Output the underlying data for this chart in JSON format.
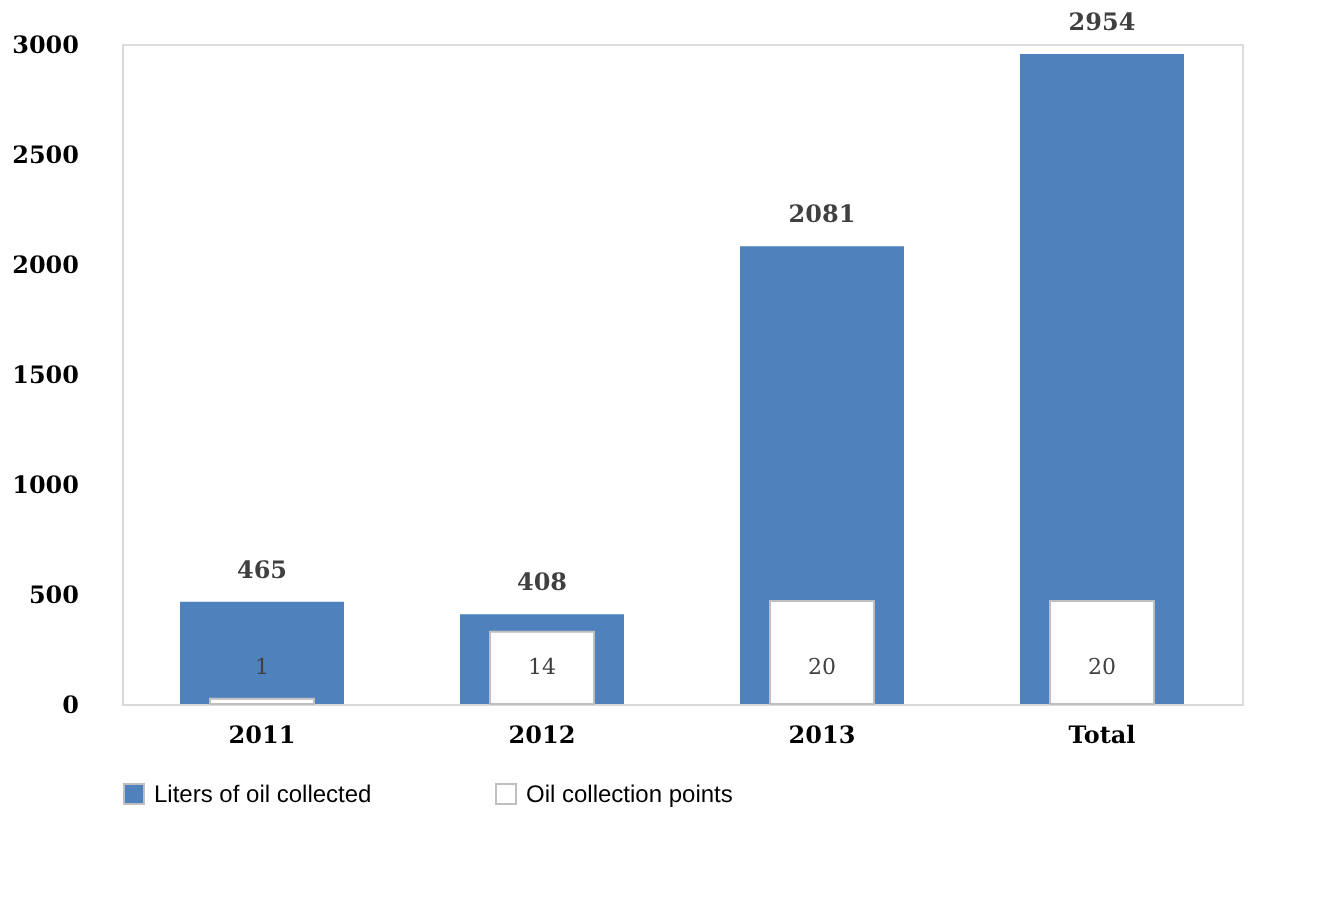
{
  "chart_data": {
    "type": "bar",
    "categories": [
      "2011",
      "2012",
      "2013",
      "Total"
    ],
    "series": [
      {
        "name": "Liters of oil collected",
        "color": "#4f81bd",
        "values": [
          465,
          408,
          2081,
          2954
        ]
      },
      {
        "name": "Oil collection points",
        "color": "#ffffff",
        "values": [
          1,
          14,
          20,
          20
        ],
        "axis": "y2"
      }
    ],
    "ylim": [
      0,
      3000
    ],
    "yticks": [
      0,
      500,
      1000,
      1500,
      2000,
      2500,
      3000
    ],
    "y2lim": [
      0,
      128
    ],
    "data_labels": true,
    "grid": false,
    "legend": "bottom"
  }
}
